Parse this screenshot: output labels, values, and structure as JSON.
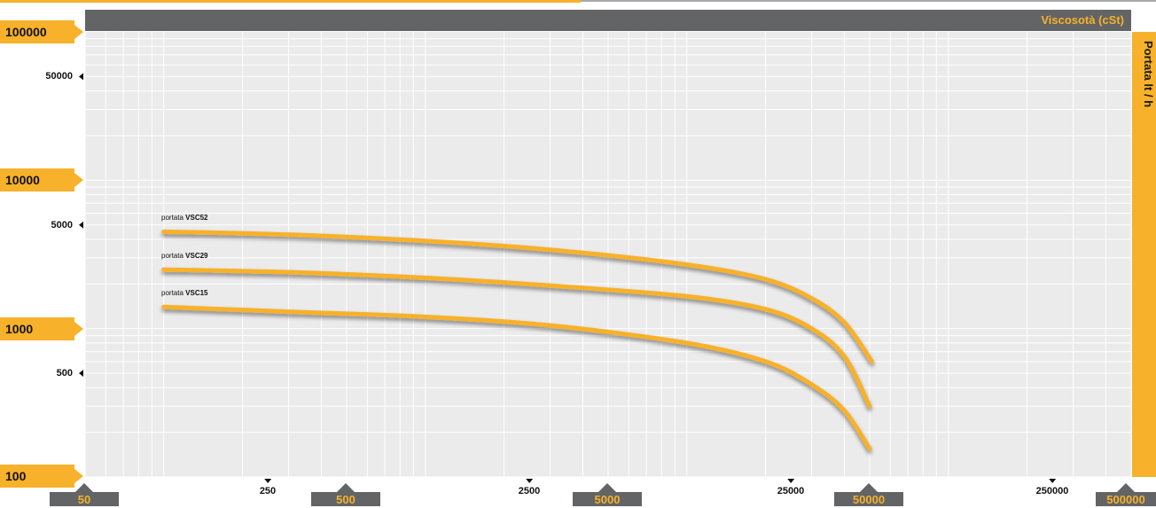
{
  "chart_data": {
    "type": "line",
    "title": "Viscosotà (cSt)",
    "xlabel": "Viscosotà (cSt)",
    "ylabel": "Portata lt / h",
    "x_scale": "log",
    "y_scale": "log",
    "xlim": [
      50,
      500000
    ],
    "ylim": [
      100,
      100000
    ],
    "grid": true,
    "x_ticks_major": [
      "50",
      "500",
      "5000",
      "50000",
      "500000"
    ],
    "x_ticks_minor": [
      "250",
      "2500",
      "25000",
      "250000"
    ],
    "y_ticks_major": [
      "100000",
      "10000",
      "1000",
      "100"
    ],
    "y_ticks_minor": [
      "50000",
      "5000",
      "500"
    ],
    "series": [
      {
        "prefix": "portata",
        "name": "VSC52",
        "x": [
          100,
          300,
          1000,
          3000,
          10000,
          20000,
          30000,
          40000,
          51000
        ],
        "y": [
          4500,
          4300,
          3900,
          3400,
          2700,
          2150,
          1600,
          1100,
          600
        ]
      },
      {
        "prefix": "portata",
        "name": "VSC29",
        "x": [
          100,
          300,
          1000,
          3000,
          10000,
          20000,
          30000,
          40000,
          50000
        ],
        "y": [
          2500,
          2400,
          2200,
          1950,
          1650,
          1350,
          1000,
          650,
          300
        ]
      },
      {
        "prefix": "portata",
        "name": "VSC15",
        "x": [
          100,
          300,
          1000,
          3000,
          10000,
          20000,
          30000,
          40000,
          50000
        ],
        "y": [
          1400,
          1300,
          1200,
          1050,
          800,
          600,
          420,
          280,
          155
        ]
      }
    ],
    "colors": {
      "line": "#f7b12a",
      "accent": "#f7b12a",
      "dark": "#636466",
      "plot_bg": "#ebebeb",
      "grid": "#ffffff"
    }
  }
}
